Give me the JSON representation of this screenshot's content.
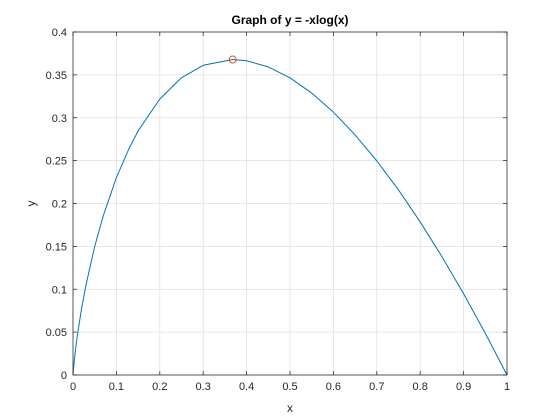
{
  "chart_data": {
    "type": "line",
    "title": "Graph of y = -xlog(x)",
    "xlabel": "x",
    "ylabel": "y",
    "xlim": [
      0,
      1
    ],
    "ylim": [
      0,
      0.4
    ],
    "grid": true,
    "xticks": [
      0,
      0.1,
      0.2,
      0.3,
      0.4,
      0.5,
      0.6,
      0.7,
      0.8,
      0.9,
      1
    ],
    "xtick_labels": [
      "0",
      "0.1",
      "0.2",
      "0.3",
      "0.4",
      "0.5",
      "0.6",
      "0.7",
      "0.8",
      "0.9",
      "1"
    ],
    "yticks": [
      0,
      0.05,
      0.1,
      0.15,
      0.2,
      0.25,
      0.3,
      0.35,
      0.4
    ],
    "ytick_labels": [
      "0",
      "0.05",
      "0.1",
      "0.15",
      "0.2",
      "0.25",
      "0.3",
      "0.35",
      "0.4"
    ],
    "series": [
      {
        "color": "#0072BD",
        "x": [
          0,
          0.001,
          0.005,
          0.01,
          0.02,
          0.03,
          0.05,
          0.07,
          0.1,
          0.13,
          0.15,
          0.2,
          0.25,
          0.3,
          0.3679,
          0.4,
          0.45,
          0.5,
          0.55,
          0.6,
          0.65,
          0.7,
          0.75,
          0.8,
          0.85,
          0.9,
          0.95,
          1
        ],
        "y": [
          0,
          0.0069,
          0.0265,
          0.0461,
          0.0782,
          0.1052,
          0.1498,
          0.1861,
          0.2303,
          0.2652,
          0.2846,
          0.3219,
          0.3466,
          0.3612,
          0.3679,
          0.3665,
          0.3593,
          0.3466,
          0.3288,
          0.3065,
          0.28,
          0.2497,
          0.2158,
          0.1785,
          0.1381,
          0.0948,
          0.0487,
          0
        ]
      }
    ],
    "markers": [
      {
        "x": 0.3679,
        "y": 0.3679,
        "shape": "circle",
        "color": "#D95319"
      }
    ]
  }
}
